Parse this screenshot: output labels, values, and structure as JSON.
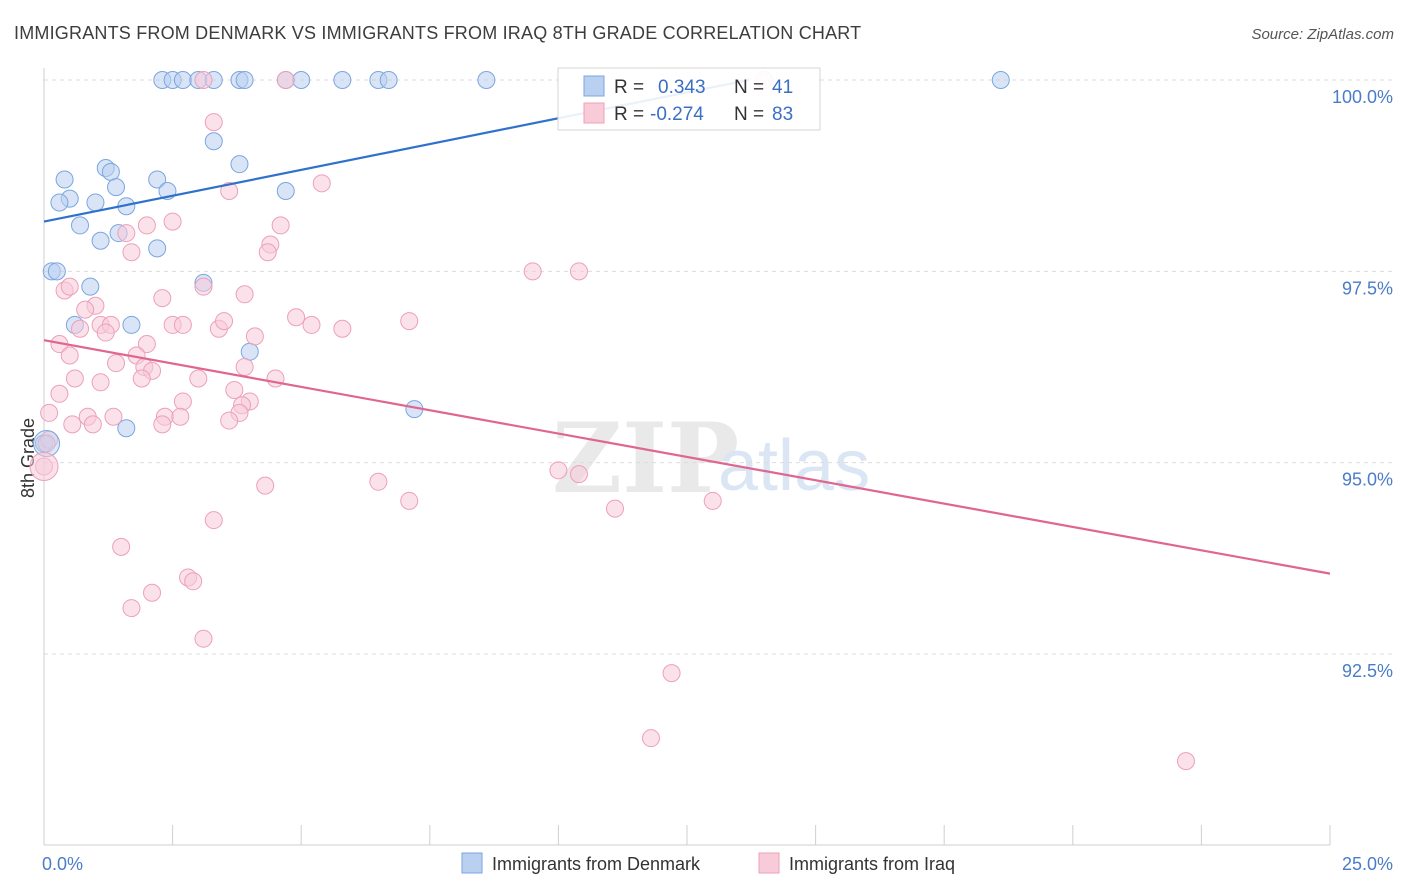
{
  "title": "IMMIGRANTS FROM DENMARK VS IMMIGRANTS FROM IRAQ 8TH GRADE CORRELATION CHART",
  "source": "Source: ZipAtlas.com",
  "watermark": {
    "zip": "ZIP",
    "atlas": "atlas"
  },
  "chart_data": {
    "type": "scatter",
    "title": "IMMIGRANTS FROM DENMARK VS IMMIGRANTS FROM IRAQ 8TH GRADE CORRELATION CHART",
    "xlabel": "",
    "ylabel": "8th Grade",
    "xlim": [
      0,
      25
    ],
    "ylim": [
      90.0,
      100.3
    ],
    "x_tick_labels": [
      {
        "value": 0,
        "label": "0.0%"
      },
      {
        "value": 25,
        "label": "25.0%"
      }
    ],
    "y_tick_labels": [
      {
        "value": 100.0,
        "label": "100.0%"
      },
      {
        "value": 97.5,
        "label": "97.5%"
      },
      {
        "value": 95.0,
        "label": "95.0%"
      },
      {
        "value": 92.5,
        "label": "92.5%"
      }
    ],
    "grid": true,
    "legend_placement": "bottom-center",
    "stats_box_placement": "top-center",
    "series": [
      {
        "name": "Immigrants from Denmark",
        "color": "#7aa6e0",
        "fill": "#b9d0f0",
        "line_color": "#2f72cc",
        "R": "0.343",
        "N": "41",
        "trend": {
          "x0": 0,
          "y0": 98.15,
          "x1": 13.7,
          "y1": 100.0
        },
        "points": [
          [
            2.3,
            100.0
          ],
          [
            2.5,
            100.0
          ],
          [
            2.7,
            100.0
          ],
          [
            3.0,
            100.0
          ],
          [
            3.3,
            100.0
          ],
          [
            3.8,
            100.0
          ],
          [
            3.9,
            100.0
          ],
          [
            4.7,
            100.0
          ],
          [
            5.0,
            100.0
          ],
          [
            5.8,
            100.0
          ],
          [
            6.5,
            100.0
          ],
          [
            6.7,
            100.0
          ],
          [
            8.6,
            100.0
          ],
          [
            18.6,
            100.0
          ],
          [
            3.3,
            99.2
          ],
          [
            3.8,
            98.9
          ],
          [
            1.2,
            98.85
          ],
          [
            1.3,
            98.8
          ],
          [
            0.4,
            98.7
          ],
          [
            2.2,
            98.7
          ],
          [
            1.4,
            98.6
          ],
          [
            2.4,
            98.55
          ],
          [
            4.7,
            98.55
          ],
          [
            0.5,
            98.45
          ],
          [
            0.3,
            98.4
          ],
          [
            1.0,
            98.4
          ],
          [
            1.6,
            98.35
          ],
          [
            0.7,
            98.1
          ],
          [
            1.45,
            98.0
          ],
          [
            1.1,
            97.9
          ],
          [
            2.2,
            97.8
          ],
          [
            0.15,
            97.5
          ],
          [
            0.25,
            97.5
          ],
          [
            0.9,
            97.3
          ],
          [
            3.1,
            97.35
          ],
          [
            0.6,
            96.8
          ],
          [
            1.7,
            96.8
          ],
          [
            4.0,
            96.45
          ],
          [
            7.2,
            95.7
          ],
          [
            1.6,
            95.45
          ],
          [
            0.0,
            95.25
          ]
        ]
      },
      {
        "name": "Immigrants from Iraq",
        "color": "#eda0b8",
        "fill": "#f7cbd8",
        "line_color": "#e06690",
        "R": "-0.274",
        "N": "83",
        "trend": {
          "x0": 0,
          "y0": 96.6,
          "x1": 25,
          "y1": 93.55
        },
        "points": [
          [
            3.1,
            100.0
          ],
          [
            4.7,
            100.0
          ],
          [
            14.0,
            100.0
          ],
          [
            3.3,
            99.45
          ],
          [
            3.6,
            98.55
          ],
          [
            5.4,
            98.65
          ],
          [
            2.5,
            98.15
          ],
          [
            2.0,
            98.1
          ],
          [
            4.6,
            98.1
          ],
          [
            1.6,
            98.0
          ],
          [
            4.4,
            97.85
          ],
          [
            1.7,
            97.75
          ],
          [
            4.35,
            97.75
          ],
          [
            9.5,
            97.5
          ],
          [
            10.4,
            97.5
          ],
          [
            0.4,
            97.25
          ],
          [
            0.5,
            97.3
          ],
          [
            2.3,
            97.15
          ],
          [
            3.1,
            97.3
          ],
          [
            3.9,
            97.2
          ],
          [
            1.0,
            97.05
          ],
          [
            0.8,
            97.0
          ],
          [
            4.9,
            96.9
          ],
          [
            7.1,
            96.85
          ],
          [
            1.1,
            96.8
          ],
          [
            1.3,
            96.8
          ],
          [
            2.5,
            96.8
          ],
          [
            2.7,
            96.8
          ],
          [
            3.4,
            96.75
          ],
          [
            3.5,
            96.85
          ],
          [
            5.2,
            96.8
          ],
          [
            5.8,
            96.75
          ],
          [
            1.2,
            96.7
          ],
          [
            0.7,
            96.75
          ],
          [
            4.1,
            96.65
          ],
          [
            0.3,
            96.55
          ],
          [
            2.0,
            96.55
          ],
          [
            1.8,
            96.4
          ],
          [
            0.5,
            96.4
          ],
          [
            1.4,
            96.3
          ],
          [
            1.95,
            96.25
          ],
          [
            3.9,
            96.25
          ],
          [
            2.1,
            96.2
          ],
          [
            3.0,
            96.1
          ],
          [
            4.5,
            96.1
          ],
          [
            1.9,
            96.1
          ],
          [
            0.6,
            96.1
          ],
          [
            1.1,
            96.05
          ],
          [
            3.7,
            95.95
          ],
          [
            0.3,
            95.9
          ],
          [
            2.7,
            95.8
          ],
          [
            4.0,
            95.8
          ],
          [
            3.85,
            95.75
          ],
          [
            3.8,
            95.65
          ],
          [
            0.1,
            95.65
          ],
          [
            0.85,
            95.6
          ],
          [
            1.35,
            95.6
          ],
          [
            2.35,
            95.6
          ],
          [
            2.65,
            95.6
          ],
          [
            0.55,
            95.5
          ],
          [
            0.95,
            95.5
          ],
          [
            2.3,
            95.5
          ],
          [
            3.6,
            95.55
          ],
          [
            0.1,
            95.3
          ],
          [
            0.0,
            94.95
          ],
          [
            10.0,
            94.9
          ],
          [
            10.4,
            94.85
          ],
          [
            6.5,
            94.75
          ],
          [
            4.3,
            94.7
          ],
          [
            7.1,
            94.5
          ],
          [
            13.0,
            94.5
          ],
          [
            11.1,
            94.4
          ],
          [
            3.3,
            94.25
          ],
          [
            1.5,
            93.9
          ],
          [
            2.8,
            93.5
          ],
          [
            2.9,
            93.45
          ],
          [
            2.1,
            93.3
          ],
          [
            1.7,
            93.1
          ],
          [
            3.1,
            92.7
          ],
          [
            12.2,
            92.25
          ],
          [
            11.8,
            91.4
          ],
          [
            22.2,
            91.1
          ],
          [
            0.05,
            95.25
          ]
        ]
      }
    ]
  }
}
